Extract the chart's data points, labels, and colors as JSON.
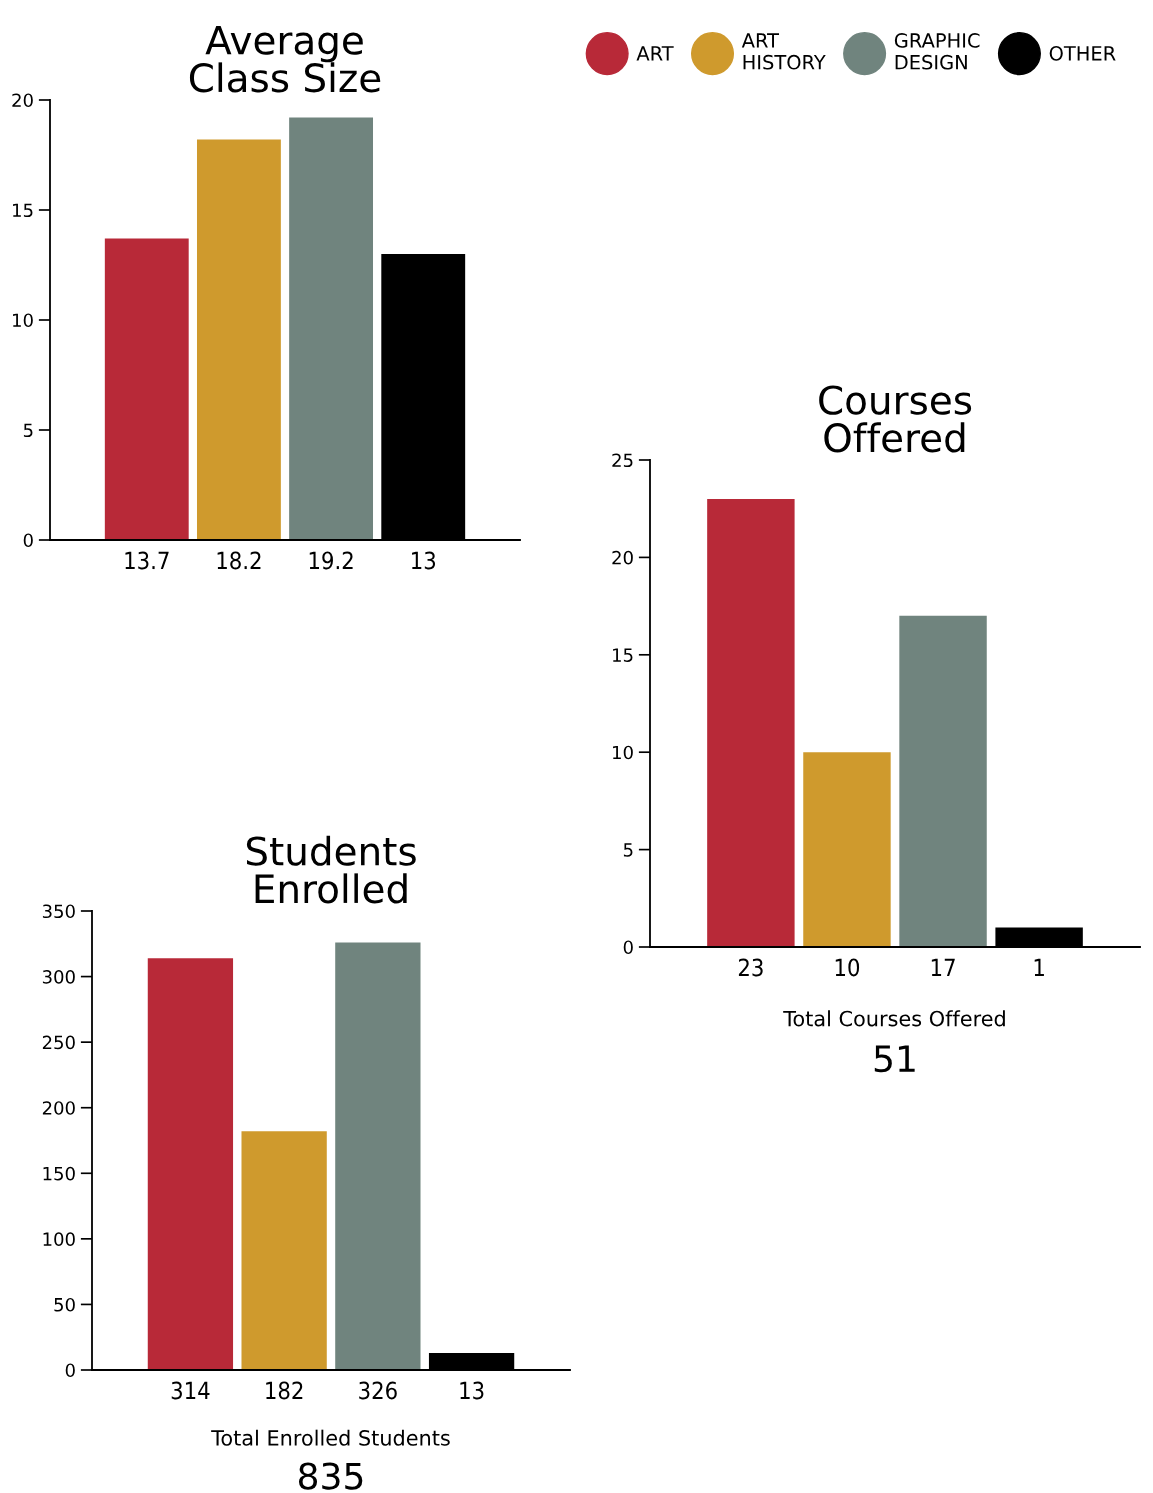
{
  "chart_data": [
    {
      "type": "bar",
      "title": "Average\nClass Size",
      "categories": [
        null
      ],
      "series": [
        {
          "name": "ART",
          "color": "#b82938",
          "values": [
            13.7
          ]
        },
        {
          "name": "ART\nHISTORY",
          "color": "#cf9a2d",
          "values": [
            18.2
          ]
        },
        {
          "name": "GRAPHIC\nDESIGN",
          "color": "#70847e",
          "values": [
            19.2
          ]
        },
        {
          "name": "OTHER",
          "color": "#000000",
          "values": [
            13
          ]
        }
      ],
      "ylim": [
        0,
        20
      ],
      "yticks": [
        0,
        5,
        10,
        15,
        20
      ],
      "tick_labels": "y",
      "data_labels": true,
      "grid": false,
      "legend": "right"
    },
    {
      "type": "bar",
      "title": "Students\nEnrolled",
      "categories": [
        null,
        null,
        null,
        null
      ],
      "values": [
        314,
        182,
        326,
        13
      ],
      "colors": [
        "#b82938",
        "#cf9a2d",
        "#70847e",
        "#000000"
      ],
      "ylim": [
        0,
        350
      ],
      "yticks": [
        0,
        50,
        100,
        150,
        200,
        250,
        300,
        350
      ],
      "tick_labels": "y",
      "data_labels": true,
      "grid": false,
      "annotations": [
        "Total Enrolled Students",
        "835"
      ]
    },
    {
      "type": "bar",
      "title": "Courses\nOffered",
      "categories": [
        null,
        null,
        null,
        null
      ],
      "values": [
        23,
        10,
        17,
        1
      ],
      "colors": [
        "#b82938",
        "#cf9a2d",
        "#70847e",
        "#000000"
      ],
      "ylim": [
        0,
        25
      ],
      "yticks": [
        0,
        5,
        10,
        15,
        20,
        25
      ],
      "tick_labels": "y",
      "data_labels": true,
      "grid": false,
      "annotations": [
        "Total Courses Offered",
        "51"
      ]
    }
  ]
}
